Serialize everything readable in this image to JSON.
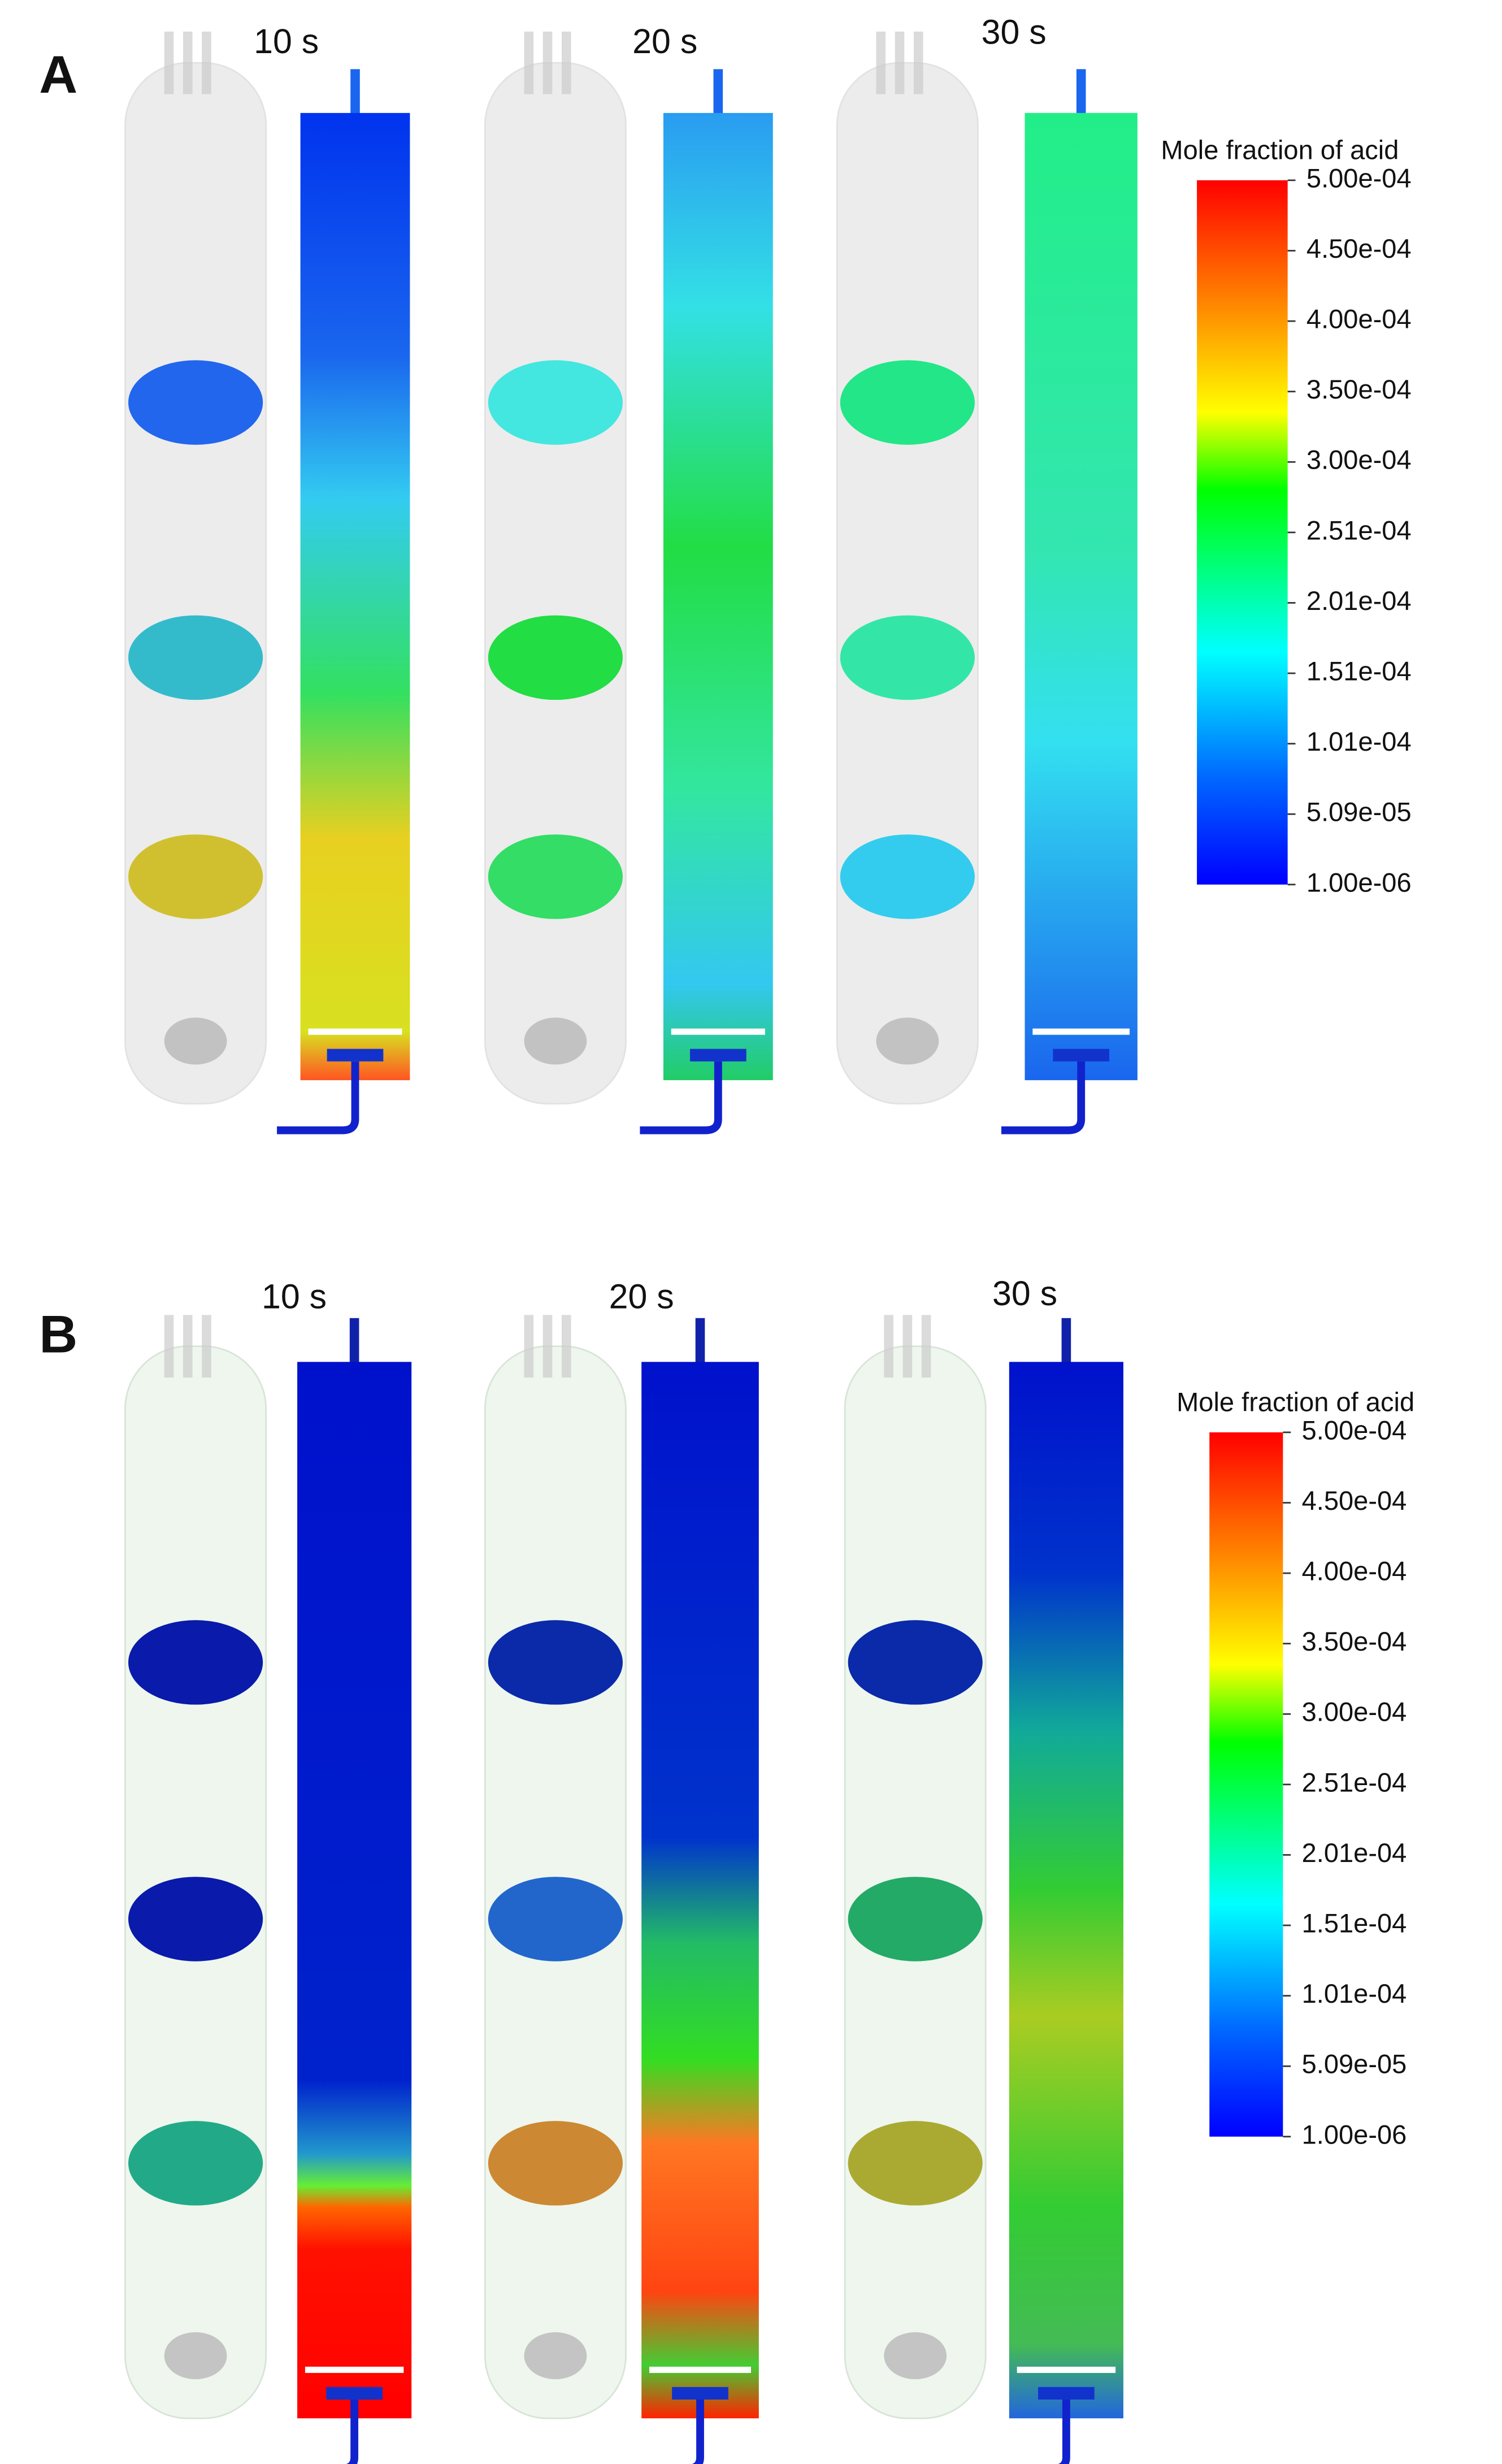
{
  "panels": [
    {
      "label": "A",
      "times": [
        "10 s",
        "20 s",
        "30 s"
      ],
      "colorbar": {
        "title": "Mole fraction of acid",
        "ticks": [
          "5.00e-04",
          "4.50e-04",
          "4.00e-04",
          "3.50e-04",
          "3.00e-04",
          "2.51e-04",
          "2.01e-04",
          "1.51e-04",
          "1.01e-04",
          "5.09e-05",
          "1.00e-06"
        ]
      }
    },
    {
      "label": "B",
      "times": [
        "10 s",
        "20 s",
        "30 s"
      ],
      "colorbar": {
        "title": "Mole fraction of acid",
        "ticks": [
          "5.00e-04",
          "4.50e-04",
          "4.00e-04",
          "3.50e-04",
          "3.00e-04",
          "2.51e-04",
          "2.01e-04",
          "1.51e-04",
          "1.01e-04",
          "5.09e-05",
          "1.00e-06"
        ]
      }
    }
  ]
}
